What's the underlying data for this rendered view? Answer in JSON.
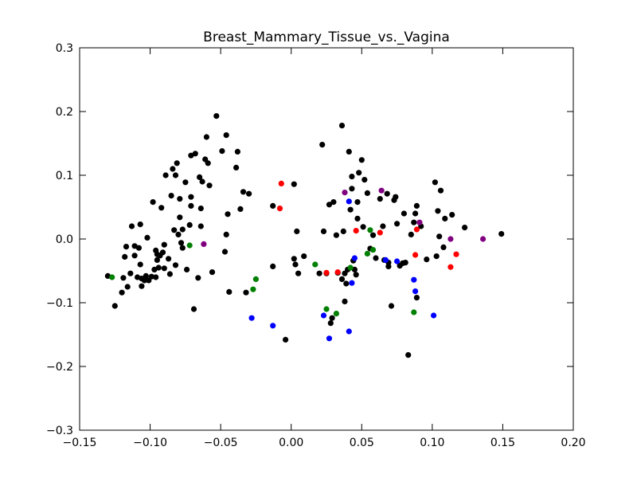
{
  "chart_data": {
    "type": "scatter",
    "title": "Breast_Mammary_Tissue_vs._Vagina",
    "xlabel": "",
    "ylabel": "",
    "xlim": [
      -0.15,
      0.2
    ],
    "ylim": [
      -0.3,
      0.3
    ],
    "xticks": [
      "−0.15",
      "−0.10",
      "−0.05",
      "0.00",
      "0.05",
      "0.10",
      "0.15",
      "0.20"
    ],
    "yticks": [
      "−0.3",
      "−0.2",
      "−0.1",
      "0.0",
      "0.1",
      "0.2",
      "0.3"
    ],
    "xtick_values": [
      -0.15,
      -0.1,
      -0.05,
      0.0,
      0.05,
      0.1,
      0.15,
      0.2
    ],
    "ytick_values": [
      -0.3,
      -0.2,
      -0.1,
      0.0,
      0.1,
      0.2,
      0.3
    ],
    "grid": false,
    "legend": "none",
    "series": [
      {
        "color": "#000000",
        "points": [
          [
            -0.13,
            -0.058
          ],
          [
            -0.125,
            -0.105
          ],
          [
            -0.12,
            -0.084
          ],
          [
            -0.119,
            -0.061
          ],
          [
            -0.118,
            -0.028
          ],
          [
            -0.117,
            -0.012
          ],
          [
            -0.116,
            -0.075
          ],
          [
            -0.114,
            -0.054
          ],
          [
            -0.113,
            0.02
          ],
          [
            -0.111,
            -0.026
          ],
          [
            -0.111,
            -0.011
          ],
          [
            -0.109,
            -0.06
          ],
          [
            -0.108,
            -0.014
          ],
          [
            -0.107,
            0.023
          ],
          [
            -0.107,
            -0.04
          ],
          [
            -0.106,
            -0.062
          ],
          [
            -0.106,
            -0.074
          ],
          [
            -0.104,
            -0.065
          ],
          [
            -0.103,
            -0.058
          ],
          [
            -0.102,
            0.002
          ],
          [
            -0.101,
            -0.065
          ],
          [
            -0.099,
            -0.059
          ],
          [
            -0.098,
            0.058
          ],
          [
            -0.097,
            -0.048
          ],
          [
            -0.096,
            -0.018
          ],
          [
            -0.096,
            -0.06
          ],
          [
            -0.095,
            -0.033
          ],
          [
            -0.095,
            -0.024
          ],
          [
            -0.094,
            -0.045
          ],
          [
            -0.093,
            -0.026
          ],
          [
            -0.092,
            0.049
          ],
          [
            -0.091,
            -0.021
          ],
          [
            -0.09,
            -0.009
          ],
          [
            -0.09,
            -0.046
          ],
          [
            -0.089,
            0.1
          ],
          [
            -0.087,
            -0.031
          ],
          [
            -0.086,
            -0.055
          ],
          [
            -0.085,
            0.068
          ],
          [
            -0.084,
            0.11
          ],
          [
            -0.083,
            0.014
          ],
          [
            -0.082,
            0.1
          ],
          [
            -0.082,
            -0.041
          ],
          [
            -0.081,
            0.119
          ],
          [
            -0.08,
            0.007
          ],
          [
            -0.079,
            0.063
          ],
          [
            -0.079,
            0.034
          ],
          [
            -0.078,
            -0.006
          ],
          [
            -0.077,
            -0.014
          ],
          [
            -0.077,
            0.015
          ],
          [
            -0.075,
            0.089
          ],
          [
            -0.074,
            -0.048
          ],
          [
            -0.072,
            0.022
          ],
          [
            -0.071,
            0.066
          ],
          [
            -0.071,
            0.052
          ],
          [
            -0.071,
            0.131
          ],
          [
            -0.069,
            -0.11
          ],
          [
            -0.068,
            0.134
          ],
          [
            -0.066,
            -0.061
          ],
          [
            -0.065,
            0.097
          ],
          [
            -0.064,
            0.02
          ],
          [
            -0.064,
            0.048
          ],
          [
            -0.063,
            0.09
          ],
          [
            -0.061,
            0.125
          ],
          [
            -0.06,
            0.16
          ],
          [
            -0.059,
            0.119
          ],
          [
            -0.058,
            0.084
          ],
          [
            -0.056,
            -0.052
          ],
          [
            -0.053,
            0.193
          ],
          [
            -0.049,
            0.138
          ],
          [
            -0.047,
            -0.02
          ],
          [
            -0.046,
            0.007
          ],
          [
            -0.046,
            0.163
          ],
          [
            -0.045,
            0.039
          ],
          [
            -0.044,
            -0.083
          ],
          [
            -0.039,
            0.112
          ],
          [
            -0.038,
            0.137
          ],
          [
            -0.036,
            0.047
          ],
          [
            -0.034,
            0.074
          ],
          [
            -0.032,
            -0.084
          ],
          [
            -0.03,
            0.071
          ],
          [
            -0.013,
            -0.043
          ],
          [
            -0.013,
            0.052
          ],
          [
            -0.004,
            -0.158
          ],
          [
            0.002,
            -0.031
          ],
          [
            0.002,
            0.086
          ],
          [
            0.003,
            -0.04
          ],
          [
            0.004,
            0.012
          ],
          [
            0.005,
            -0.054
          ],
          [
            0.009,
            -0.027
          ],
          [
            0.02,
            -0.054
          ],
          [
            0.022,
            0.148
          ],
          [
            0.023,
            0.012
          ],
          [
            0.025,
            -0.054
          ],
          [
            0.027,
            0.054
          ],
          [
            0.028,
            -0.132
          ],
          [
            0.029,
            -0.124
          ],
          [
            0.03,
            0.058
          ],
          [
            0.032,
            0.006
          ],
          [
            0.033,
            -0.053
          ],
          [
            0.036,
            -0.063
          ],
          [
            0.036,
            0.178
          ],
          [
            0.037,
            0.012
          ],
          [
            0.038,
            -0.098
          ],
          [
            0.038,
            -0.054
          ],
          [
            0.039,
            -0.07
          ],
          [
            0.04,
            -0.048
          ],
          [
            0.041,
            0.137
          ],
          [
            0.042,
            0.046
          ],
          [
            0.043,
            0.079
          ],
          [
            0.043,
            0.098
          ],
          [
            0.044,
            -0.034
          ],
          [
            0.045,
            -0.048
          ],
          [
            0.046,
            -0.056
          ],
          [
            0.047,
            0.058
          ],
          [
            0.047,
            0.032
          ],
          [
            0.048,
            0.104
          ],
          [
            0.05,
            0.124
          ],
          [
            0.051,
            0.019
          ],
          [
            0.052,
            0.093
          ],
          [
            0.054,
            0.072
          ],
          [
            0.056,
            -0.015
          ],
          [
            0.058,
            0.006
          ],
          [
            0.06,
            -0.03
          ],
          [
            0.063,
            0.063
          ],
          [
            0.065,
            0.02
          ],
          [
            0.066,
            -0.033
          ],
          [
            0.068,
            0.071
          ],
          [
            0.069,
            -0.043
          ],
          [
            0.069,
            -0.037
          ],
          [
            0.071,
            -0.105
          ],
          [
            0.073,
            0.061
          ],
          [
            0.074,
            0.066
          ],
          [
            0.075,
            0.024
          ],
          [
            0.077,
            -0.042
          ],
          [
            0.079,
            -0.038
          ],
          [
            0.08,
            0.04
          ],
          [
            0.081,
            -0.037
          ],
          [
            0.083,
            -0.182
          ],
          [
            0.085,
            0.007
          ],
          [
            0.087,
            0.026
          ],
          [
            0.088,
            0.04
          ],
          [
            0.089,
            -0.092
          ],
          [
            0.089,
            0.052
          ],
          [
            0.092,
            0.02
          ],
          [
            0.096,
            -0.032
          ],
          [
            0.102,
            0.089
          ],
          [
            0.103,
            -0.027
          ],
          [
            0.104,
            0.044
          ],
          [
            0.105,
            0.004
          ],
          [
            0.106,
            0.076
          ],
          [
            0.108,
            -0.013
          ],
          [
            0.109,
            0.032
          ],
          [
            0.114,
            0.038
          ],
          [
            0.123,
            0.018
          ],
          [
            0.149,
            0.008
          ]
        ]
      },
      {
        "color": "#ff0000",
        "points": [
          [
            -0.007,
            0.087
          ],
          [
            -0.008,
            0.048
          ],
          [
            0.025,
            -0.053
          ],
          [
            0.033,
            -0.052
          ],
          [
            0.046,
            0.013
          ],
          [
            0.063,
            0.01
          ],
          [
            0.088,
            -0.025
          ],
          [
            0.089,
            0.015
          ],
          [
            0.113,
            -0.044
          ],
          [
            0.117,
            -0.024
          ]
        ]
      },
      {
        "color": "#0000ff",
        "points": [
          [
            -0.028,
            -0.124
          ],
          [
            -0.013,
            -0.136
          ],
          [
            0.023,
            -0.12
          ],
          [
            0.027,
            -0.156
          ],
          [
            0.041,
            -0.145
          ],
          [
            0.041,
            0.059
          ],
          [
            0.043,
            -0.069
          ],
          [
            0.045,
            -0.03
          ],
          [
            0.067,
            -0.033
          ],
          [
            0.075,
            -0.035
          ],
          [
            0.087,
            -0.064
          ],
          [
            0.088,
            -0.082
          ],
          [
            0.101,
            -0.12
          ]
        ]
      },
      {
        "color": "#008000",
        "points": [
          [
            -0.127,
            -0.06
          ],
          [
            -0.072,
            -0.01
          ],
          [
            -0.027,
            -0.079
          ],
          [
            -0.025,
            -0.063
          ],
          [
            0.017,
            -0.04
          ],
          [
            0.025,
            -0.11
          ],
          [
            0.032,
            -0.117
          ],
          [
            0.042,
            -0.045
          ],
          [
            0.054,
            -0.023
          ],
          [
            0.056,
            0.014
          ],
          [
            0.058,
            -0.017
          ],
          [
            0.087,
            -0.115
          ]
        ]
      },
      {
        "color": "#800080",
        "points": [
          [
            -0.062,
            -0.008
          ],
          [
            0.038,
            0.073
          ],
          [
            0.064,
            0.076
          ],
          [
            0.091,
            0.026
          ],
          [
            0.113,
            0.0
          ],
          [
            0.136,
            0.0
          ]
        ]
      }
    ]
  }
}
